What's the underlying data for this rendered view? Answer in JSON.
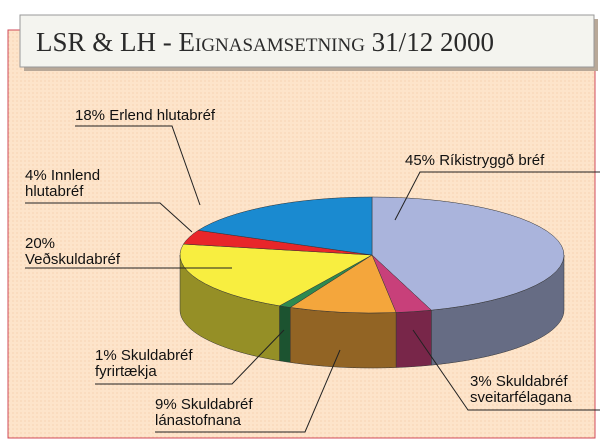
{
  "chart_data": {
    "type": "pie3d",
    "title": "LSR & LH - Eignasamsetning 31/12 2000",
    "categories": [
      "Ríkistryggð bréf",
      "Skuldabréf sveitarfélagana",
      "Skuldabréf lánastofnana",
      "Skuldabréf fyrirtækja",
      "Veðskuldabréf",
      "Innlend hlutabréf",
      "Erlend hlutabréf"
    ],
    "values": [
      45,
      3,
      9,
      1,
      20,
      4,
      18
    ],
    "value_labels": [
      "45%",
      "3%",
      "9%",
      "1%",
      "20%",
      "4%",
      "18%"
    ],
    "colors": [
      "#aab4dc",
      "#c8407a",
      "#f4a63c",
      "#2e8a50",
      "#f8ee40",
      "#e8262a",
      "#1a8ad0"
    ]
  }
}
